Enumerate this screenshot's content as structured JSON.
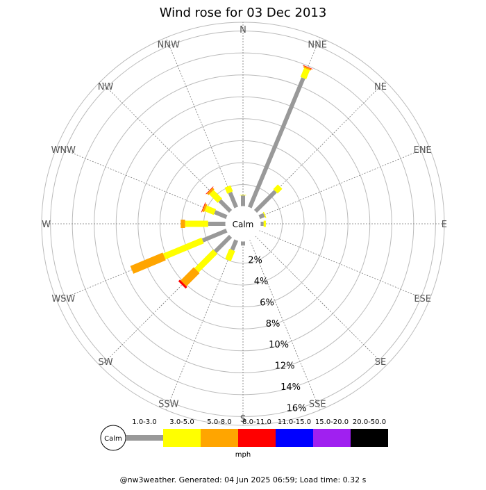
{
  "title": "Wind rose for 03 Dec 2013",
  "footer": "@nw3weather. Generated: 04 Jun 2025 06:59; Load time: 0.32 s",
  "chart_data": {
    "type": "wind_rose",
    "title": "Wind rose for 03 Dec 2013",
    "units": "mph",
    "calm_label": "Calm",
    "directions": [
      "N",
      "NNE",
      "NE",
      "ENE",
      "E",
      "ESE",
      "SE",
      "SSE",
      "S",
      "SSW",
      "SW",
      "WSW",
      "W",
      "WNW",
      "NW",
      "NNW"
    ],
    "radial_ticks": [
      "2%",
      "4%",
      "6%",
      "8%",
      "10%",
      "12%",
      "14%",
      "16%"
    ],
    "radial_tick_values": [
      2,
      4,
      6,
      8,
      10,
      12,
      14,
      16
    ],
    "rmax": 16.8,
    "grid": true,
    "speed_bins": [
      {
        "label": "1.0-3.0",
        "color": "#999999"
      },
      {
        "label": "3.0-5.0",
        "color": "#ffff00"
      },
      {
        "label": "5.0-8.0",
        "color": "#ffa500"
      },
      {
        "label": "8.0-11.0",
        "color": "#ff0000"
      },
      {
        "label": "11.0-15.0",
        "color": "#0000ff"
      },
      {
        "label": "15.0-20.0",
        "color": "#a020f0"
      },
      {
        "label": "20.0-50.0",
        "color": "#000000"
      }
    ],
    "series": [
      {
        "direction": "N",
        "values": [
          1.0,
          0.05,
          0,
          0,
          0,
          0,
          0
        ]
      },
      {
        "direction": "NNE",
        "values": [
          12.8,
          0.9,
          0.15,
          0.05,
          0,
          0,
          0
        ]
      },
      {
        "direction": "NE",
        "values": [
          2.6,
          0.6,
          0,
          0,
          0,
          0,
          0
        ]
      },
      {
        "direction": "ENE",
        "values": [
          0.5,
          0.1,
          0,
          0,
          0,
          0,
          0
        ]
      },
      {
        "direction": "E",
        "values": [
          0.3,
          0.2,
          0,
          0,
          0,
          0,
          0
        ]
      },
      {
        "direction": "ESE",
        "values": [
          0,
          0,
          0,
          0,
          0,
          0,
          0
        ]
      },
      {
        "direction": "SE",
        "values": [
          0,
          0,
          0,
          0,
          0,
          0,
          0
        ]
      },
      {
        "direction": "SSE",
        "values": [
          0,
          0,
          0,
          0,
          0,
          0,
          0
        ]
      },
      {
        "direction": "S",
        "values": [
          0.4,
          0,
          0,
          0,
          0,
          0,
          0
        ]
      },
      {
        "direction": "SSW",
        "values": [
          1.0,
          1.0,
          0,
          0,
          0,
          0,
          0
        ]
      },
      {
        "direction": "SW",
        "values": [
          2.0,
          2.4,
          1.7,
          0.2,
          0,
          0,
          0
        ]
      },
      {
        "direction": "WSW",
        "values": [
          2.4,
          3.8,
          3.2,
          0,
          0,
          0,
          0
        ]
      },
      {
        "direction": "W",
        "values": [
          1.6,
          2.1,
          0.4,
          0,
          0,
          0,
          0
        ]
      },
      {
        "direction": "WNW",
        "values": [
          1.2,
          0.9,
          0.2,
          0.05,
          0,
          0,
          0
        ]
      },
      {
        "direction": "NW",
        "values": [
          1.4,
          1.1,
          0.2,
          0.05,
          0,
          0,
          0
        ]
      },
      {
        "direction": "NNW",
        "values": [
          1.5,
          0.6,
          0,
          0,
          0,
          0,
          0
        ]
      }
    ]
  }
}
